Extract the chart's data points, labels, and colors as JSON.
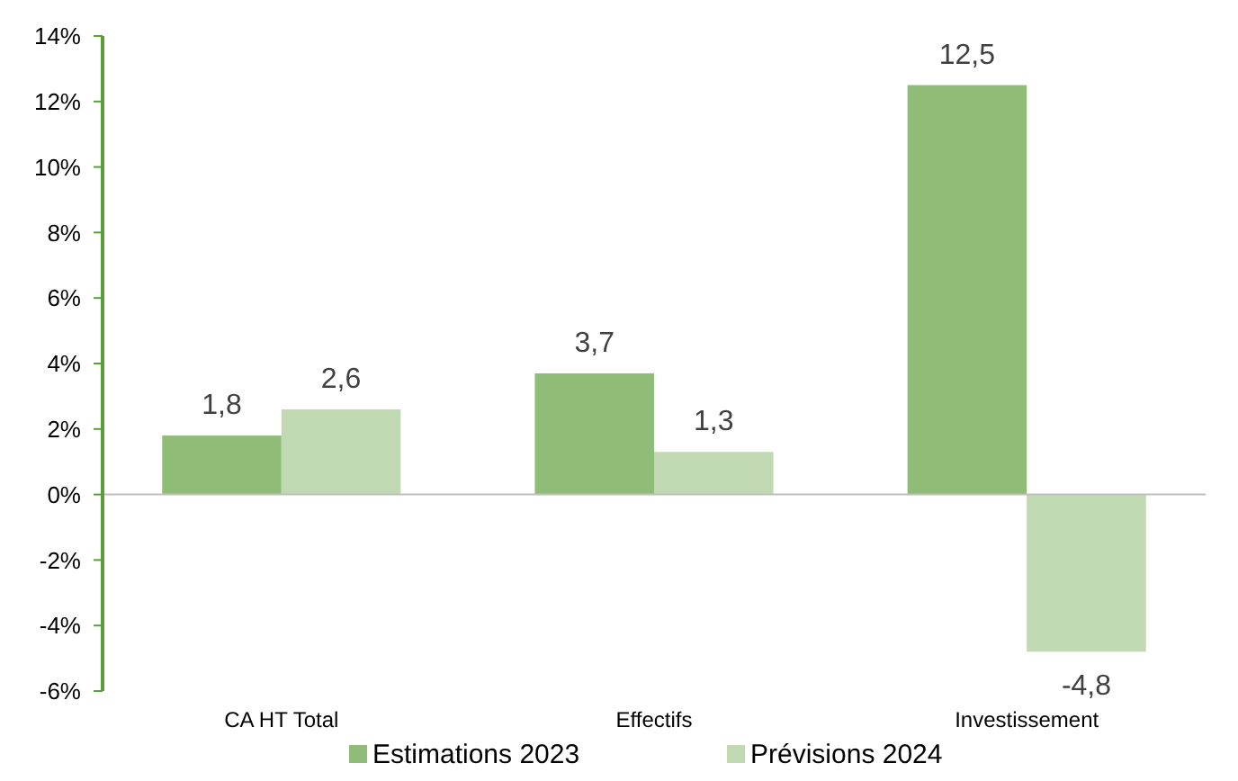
{
  "chart_data": {
    "type": "bar",
    "categories": [
      "CA HT Total",
      "Effectifs",
      "Investissement"
    ],
    "series": [
      {
        "name": "Estimations 2023",
        "color": "#8fbc77",
        "values": [
          1.8,
          3.7,
          12.5
        ],
        "value_labels": [
          "1,8",
          "3,7",
          "12,5"
        ]
      },
      {
        "name": "Prévisions 2024",
        "color": "#c0d9b3",
        "values": [
          2.6,
          1.3,
          -4.8
        ],
        "value_labels": [
          "2,6",
          "1,3",
          "-4,8"
        ]
      }
    ],
    "ylim": [
      -6,
      14
    ],
    "yticks": [
      {
        "value": -6,
        "label": "-6%"
      },
      {
        "value": -4,
        "label": "-4%"
      },
      {
        "value": -2,
        "label": "-2%"
      },
      {
        "value": 0,
        "label": "0%"
      },
      {
        "value": 2,
        "label": "2%"
      },
      {
        "value": 4,
        "label": "4%"
      },
      {
        "value": 6,
        "label": "6%"
      },
      {
        "value": 8,
        "label": "8%"
      },
      {
        "value": 10,
        "label": "10%"
      },
      {
        "value": 12,
        "label": "12%"
      },
      {
        "value": 14,
        "label": "14%"
      }
    ],
    "legend": "bottom"
  }
}
